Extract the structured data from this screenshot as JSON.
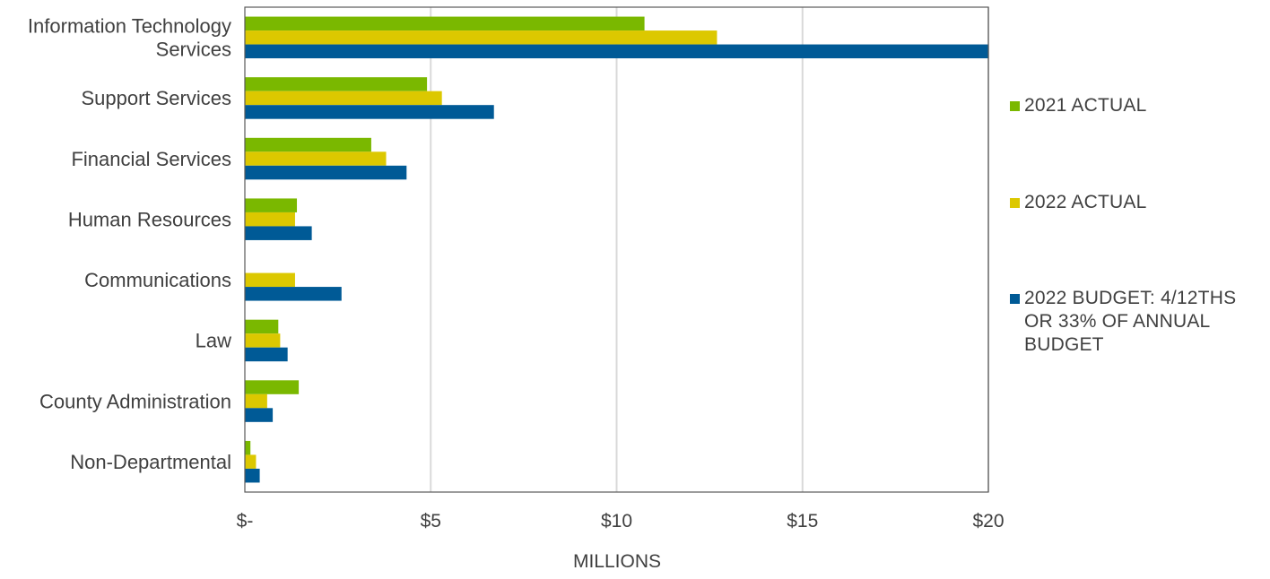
{
  "chart_data": {
    "type": "bar",
    "orientation": "horizontal",
    "categories": [
      "Information Technology Services",
      "Support Services",
      "Financial Services",
      "Human Resources",
      "Communications",
      "Law",
      "County Administration",
      "Non-Departmental"
    ],
    "category_label_lines": [
      [
        "Information Technology",
        "Services"
      ],
      [
        "Support Services"
      ],
      [
        "Financial Services"
      ],
      [
        "Human Resources"
      ],
      [
        "Communications"
      ],
      [
        "Law"
      ],
      [
        "County Administration"
      ],
      [
        "Non-Departmental"
      ]
    ],
    "series": [
      {
        "name": "2021 ACTUAL",
        "color": "#7ab800",
        "values": [
          10.75,
          4.9,
          3.4,
          1.4,
          0,
          0.9,
          1.45,
          0.15
        ]
      },
      {
        "name": "2022 ACTUAL",
        "color": "#dcc800",
        "values": [
          12.7,
          5.3,
          3.8,
          1.35,
          1.35,
          0.95,
          0.6,
          0.3
        ]
      },
      {
        "name": "2022 BUDGET: 4/12THS OR 33% OF ANNUAL BUDGET",
        "color": "#005a96",
        "values": [
          20.1,
          6.7,
          4.35,
          1.8,
          2.6,
          1.15,
          0.75,
          0.4
        ]
      }
    ],
    "xlim": [
      0,
      20
    ],
    "x_ticks": [
      0,
      5,
      10,
      15,
      20
    ],
    "x_tick_labels": [
      "$-",
      "$5",
      "$10",
      "$15",
      "$20"
    ],
    "xlabel": "MILLIONS",
    "ylabel": "",
    "title": "",
    "grid": "vertical",
    "legend_position": "right"
  },
  "colors": {
    "grid": "#d9d9d9",
    "axis": "#595959",
    "text": "#404040"
  }
}
